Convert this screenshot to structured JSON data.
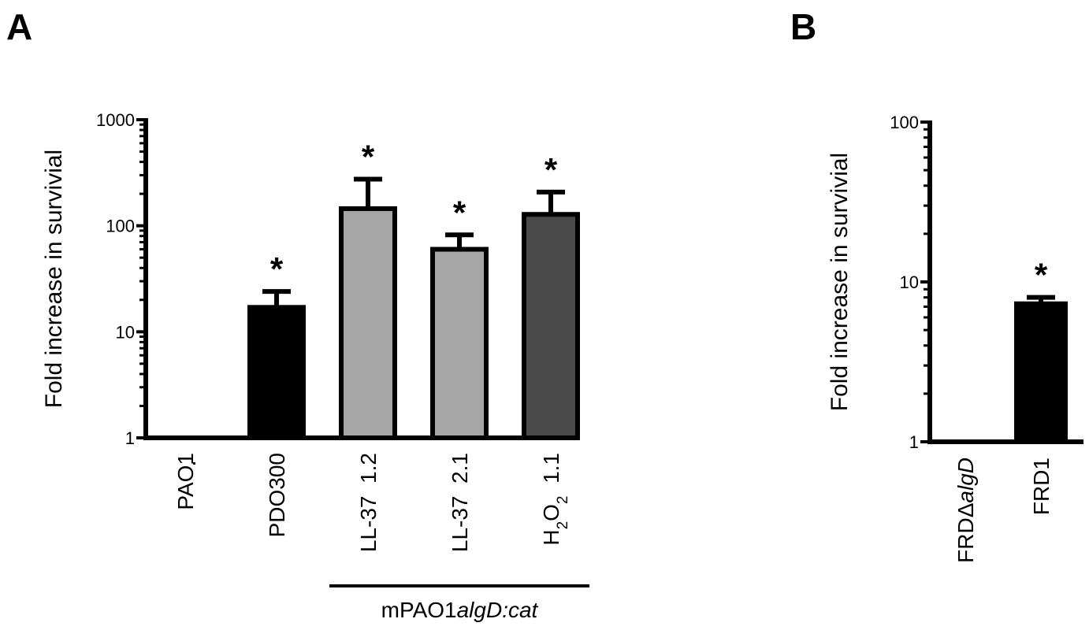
{
  "panels": {
    "a_label": "A",
    "b_label": "B"
  },
  "colors": {
    "black": "#000000",
    "light_gray": "#a6a6a6",
    "dark_gray": "#4a4a4a"
  },
  "chart_data": [
    {
      "panel": "A",
      "type": "bar",
      "scale": "log",
      "ylabel": "Fold increase in survivial",
      "ylim": [
        1,
        1000
      ],
      "yticks": [
        "1",
        "10",
        "100",
        "1000"
      ],
      "categories": [
        {
          "parts": [
            {
              "t": "PAO1"
            }
          ]
        },
        {
          "parts": [
            {
              "t": "PDO300"
            }
          ]
        },
        {
          "parts": [
            {
              "t": "LL-37  1.2"
            }
          ]
        },
        {
          "parts": [
            {
              "t": "LL-37  2.1"
            }
          ]
        },
        {
          "parts": [
            {
              "t": "H"
            },
            {
              "t": "2",
              "sub": true
            },
            {
              "t": "O"
            },
            {
              "t": "2",
              "sub": true
            },
            {
              "t": "  1.1"
            }
          ]
        }
      ],
      "values": [
        1,
        17,
        145,
        60,
        128
      ],
      "errors_upper": [
        1,
        24,
        275,
        82,
        208
      ],
      "fills": [
        "#000000",
        "#000000",
        "#a6a6a6",
        "#a6a6a6",
        "#4a4a4a"
      ],
      "significance": [
        "",
        "*",
        "*",
        "*",
        "*"
      ],
      "group_bracket": {
        "from_index": 2,
        "to_index": 4,
        "label_parts": [
          {
            "t": "mPAO1"
          },
          {
            "t": "algD:cat",
            "italic": true
          }
        ]
      },
      "grid": false,
      "legend": "none"
    },
    {
      "panel": "B",
      "type": "bar",
      "scale": "log",
      "ylabel": "Fold increase in survivial",
      "ylim": [
        1,
        100
      ],
      "yticks": [
        "1",
        "10",
        "100"
      ],
      "categories": [
        {
          "parts": [
            {
              "t": "FRDΔ"
            },
            {
              "t": "algD",
              "italic": true
            }
          ]
        },
        {
          "parts": [
            {
              "t": "FRD1"
            }
          ]
        }
      ],
      "values": [
        1,
        7.3
      ],
      "errors_upper": [
        1,
        8.0
      ],
      "fills": [
        "#000000",
        "#000000"
      ],
      "significance": [
        "",
        "*"
      ],
      "grid": false,
      "legend": "none"
    }
  ]
}
